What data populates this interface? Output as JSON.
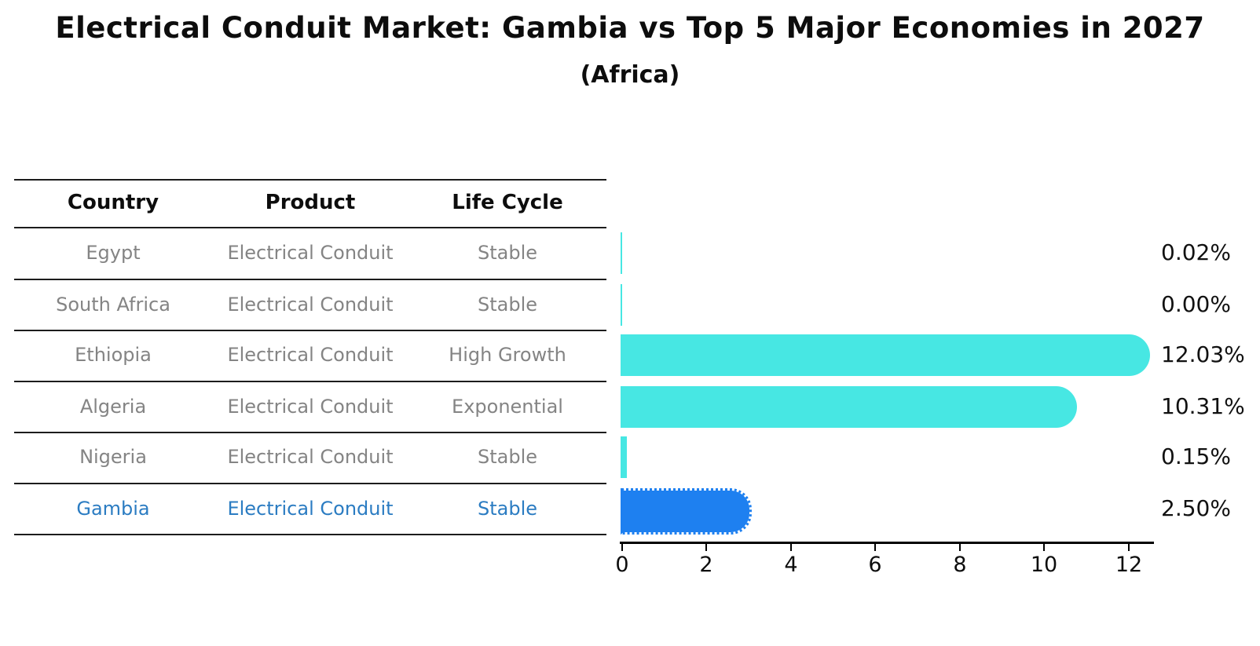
{
  "table": {
    "headers": [
      "Country",
      "Product",
      "Life Cycle"
    ],
    "rows": [
      {
        "country": "Egypt",
        "product": "Electrical Conduit",
        "life_cycle": "Stable",
        "highlight": false
      },
      {
        "country": "South Africa",
        "product": "Electrical Conduit",
        "life_cycle": "Stable",
        "highlight": false
      },
      {
        "country": "Ethiopia",
        "product": "Electrical Conduit",
        "life_cycle": "High Growth",
        "highlight": false
      },
      {
        "country": "Algeria",
        "product": "Electrical Conduit",
        "life_cycle": "Exponential",
        "highlight": false
      },
      {
        "country": "Nigeria",
        "product": "Electrical Conduit",
        "life_cycle": "Stable",
        "highlight": false
      },
      {
        "country": "Gambia",
        "product": "Electrical Conduit",
        "life_cycle": "Stable",
        "highlight": true
      }
    ]
  },
  "chart_data": {
    "type": "bar",
    "orientation": "horizontal",
    "title": "Electrical Conduit Market: Gambia vs Top 5 Major Economies in 2027",
    "subtitle": "(Africa)",
    "categories": [
      "Egypt",
      "South Africa",
      "Ethiopia",
      "Algeria",
      "Nigeria",
      "Gambia"
    ],
    "values": [
      0.02,
      0.0,
      12.03,
      10.31,
      0.15,
      2.5
    ],
    "value_labels": [
      "0.02%",
      "0.00%",
      "12.03%",
      "10.31%",
      "0.15%",
      "2.50%"
    ],
    "x_ticks": [
      0,
      2,
      4,
      6,
      8,
      10,
      12
    ],
    "xlim": [
      0,
      12.75
    ],
    "grid": false,
    "legend": false,
    "bar_color": "#47e7e3",
    "highlight_color": "#1e80f0",
    "highlight_index": 5,
    "highlight_text_color": "#2b7cc2",
    "table_text_color": "#848484"
  }
}
